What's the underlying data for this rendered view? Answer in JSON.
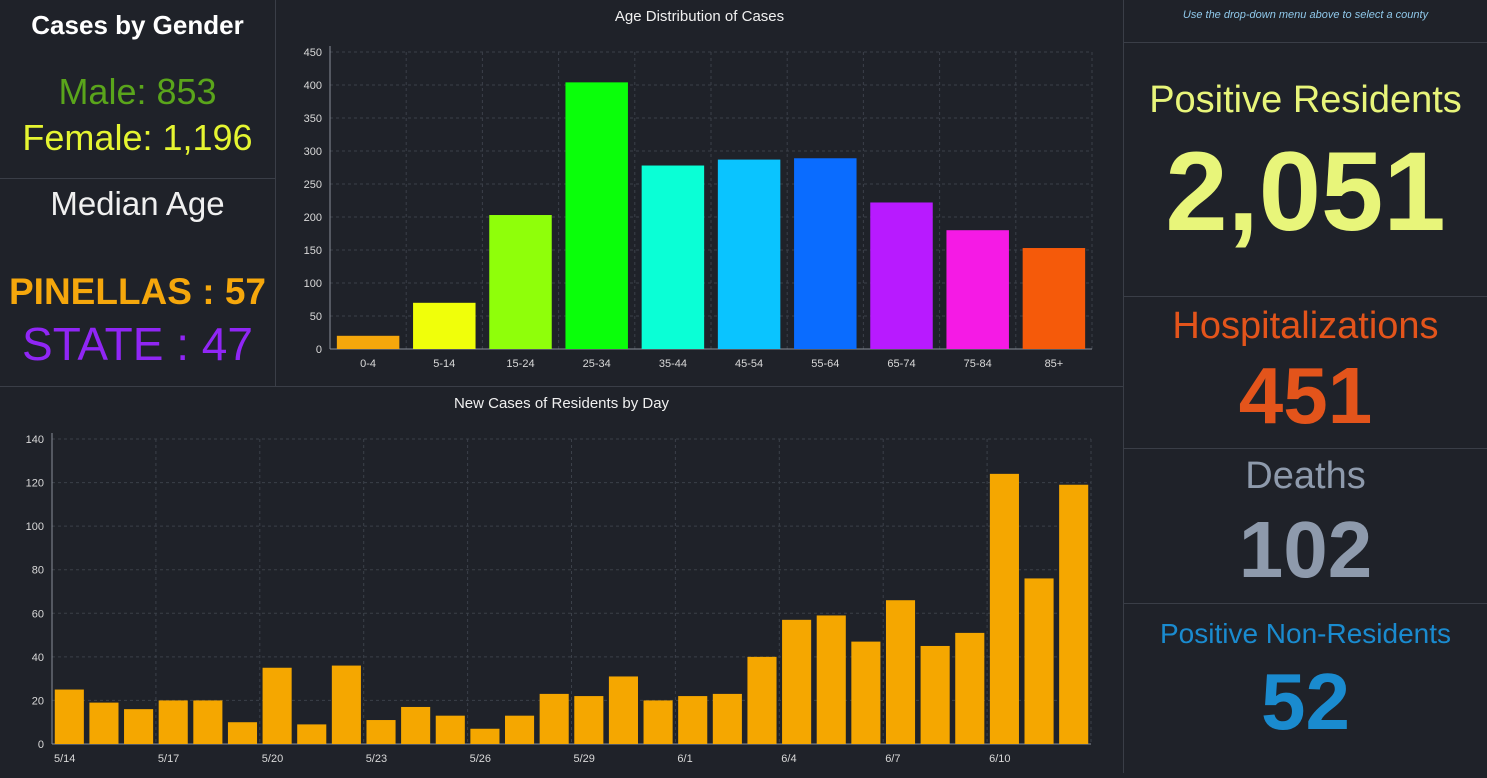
{
  "gender": {
    "title": "Cases by Gender",
    "male": "Male: 853",
    "female": "Female: 1,196"
  },
  "median_age": {
    "title": "Median Age",
    "county": "PINELLAS : 57",
    "state": "STATE : 47"
  },
  "hint": "Use the drop-down menu above to select a county",
  "stats": {
    "positive_label": "Positive Residents",
    "positive_value": "2,051",
    "hosp_label": "Hospitalizations",
    "hosp_value": "451",
    "deaths_label": "Deaths",
    "deaths_value": "102",
    "nonres_label": "Positive Non-Residents",
    "nonres_value": "52"
  },
  "colors": {
    "male": "#5aa51b",
    "female": "#e5f531",
    "county": "#f5a70c",
    "state": "#9026f5",
    "positive": "#e8f57a",
    "hosp": "#e3541b",
    "deaths": "#8e9aac",
    "nonres": "#1a8bcf",
    "daily_bar": "#f5a700"
  },
  "chart_data": [
    {
      "type": "bar",
      "title": "Age Distribution of Cases",
      "categories": [
        "0-4",
        "5-14",
        "15-24",
        "25-34",
        "35-44",
        "45-54",
        "55-64",
        "65-74",
        "75-84",
        "85+"
      ],
      "values": [
        20,
        70,
        203,
        404,
        278,
        287,
        289,
        222,
        180,
        153
      ],
      "bar_colors": [
        "#f5a70c",
        "#f0ff0a",
        "#8fff0a",
        "#0aff0a",
        "#0affd6",
        "#0ac4ff",
        "#0a6cff",
        "#b81aff",
        "#f51ae5",
        "#f55a0a"
      ],
      "yticks": [
        0,
        50,
        100,
        150,
        200,
        250,
        300,
        350,
        400,
        450
      ],
      "ylim": [
        0,
        450
      ],
      "grid": true
    },
    {
      "type": "bar",
      "title": "New Cases of Residents by Day",
      "categories": [
        "5/14",
        "5/15",
        "5/16",
        "5/17",
        "5/18",
        "5/19",
        "5/20",
        "5/21",
        "5/22",
        "5/23",
        "5/24",
        "5/25",
        "5/26",
        "5/27",
        "5/28",
        "5/29",
        "5/30",
        "5/31",
        "6/1",
        "6/2",
        "6/3",
        "6/4",
        "6/5",
        "6/6",
        "6/7",
        "6/8",
        "6/9",
        "6/10",
        "6/11",
        "6/12"
      ],
      "values": [
        25,
        19,
        16,
        20,
        20,
        10,
        35,
        9,
        36,
        11,
        17,
        13,
        7,
        13,
        23,
        22,
        31,
        20,
        22,
        23,
        40,
        57,
        59,
        47,
        66,
        45,
        51,
        124,
        76,
        119
      ],
      "xtick_labels": [
        "5/14",
        "5/17",
        "5/20",
        "5/23",
        "5/26",
        "5/29",
        "6/1",
        "6/4",
        "6/7",
        "6/10"
      ],
      "yticks": [
        0,
        20,
        40,
        60,
        80,
        100,
        120,
        140
      ],
      "ylim": [
        0,
        140
      ],
      "grid": true
    }
  ]
}
